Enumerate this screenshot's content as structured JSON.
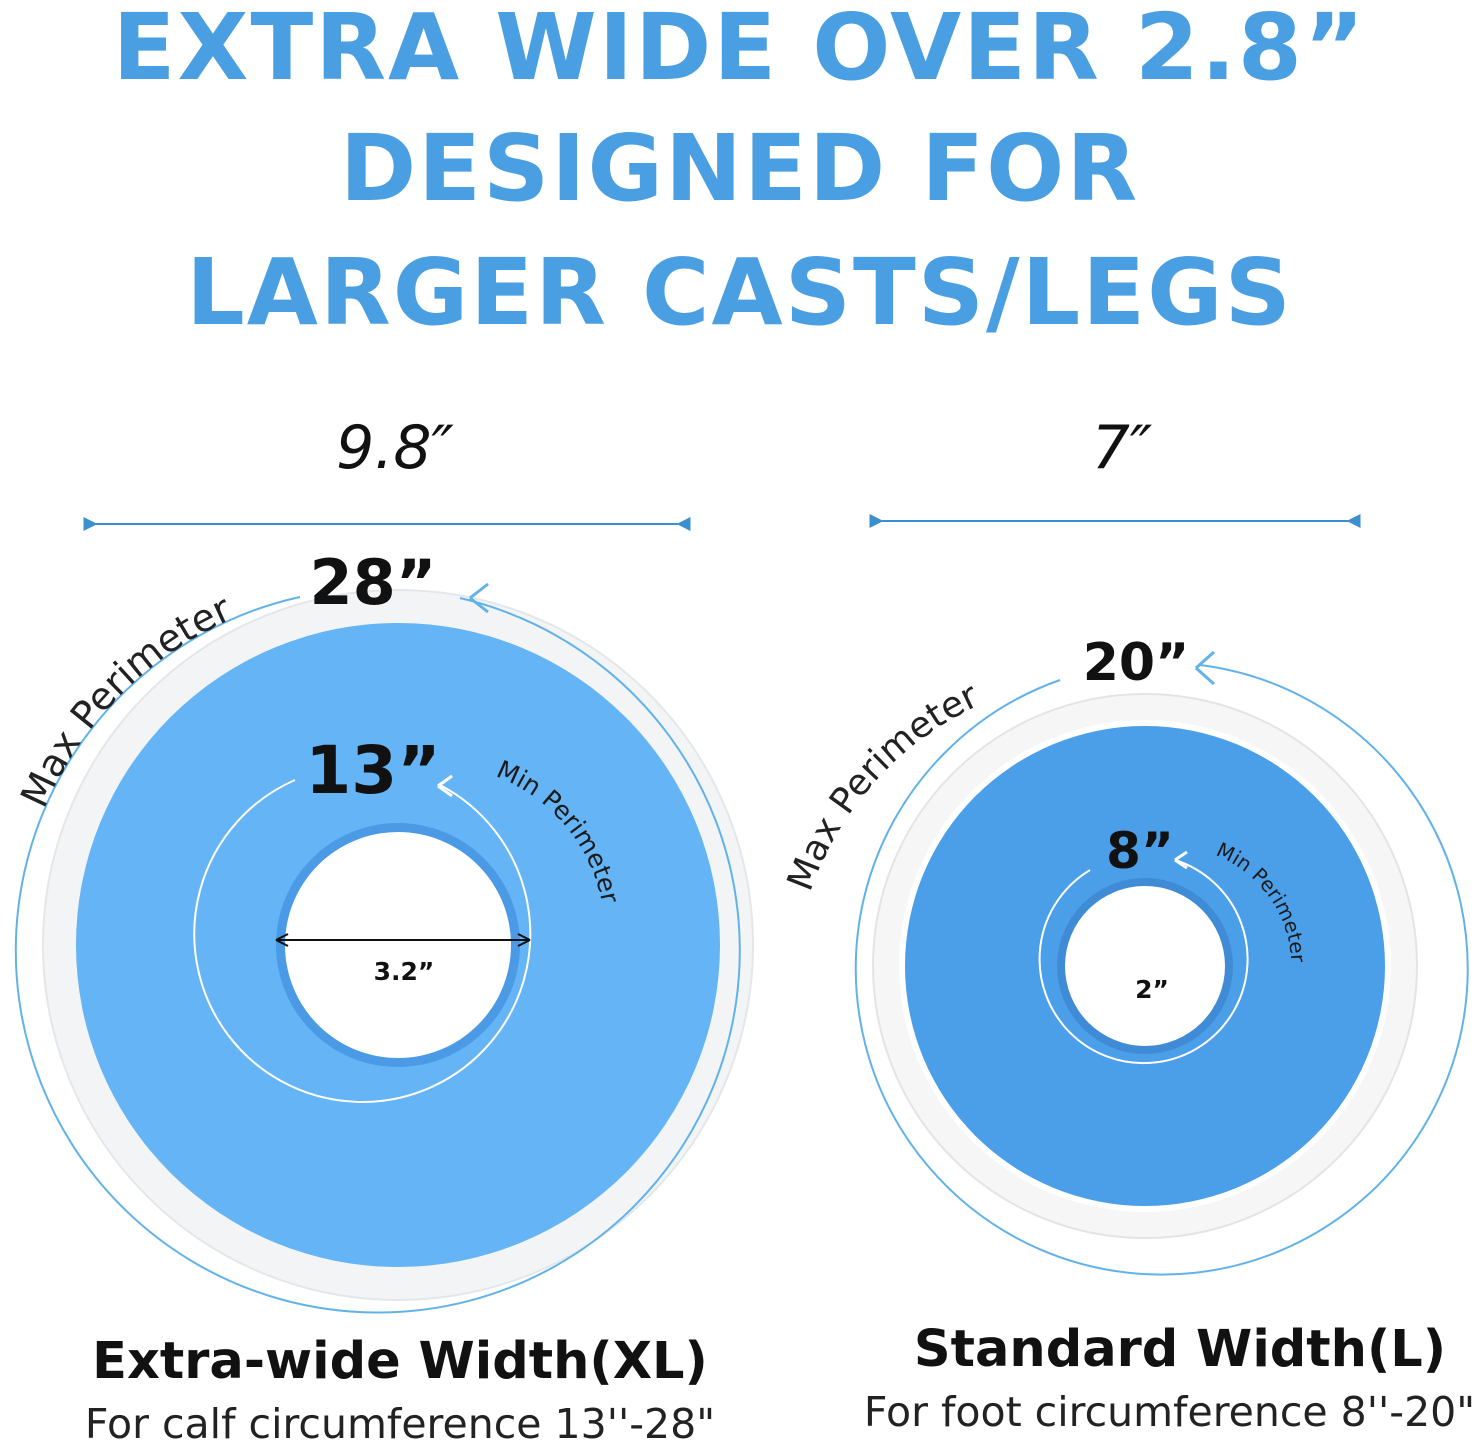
{
  "headline": {
    "line1": "EXTRA WIDE OVER 2.8”",
    "line2": "DESIGNED FOR",
    "line3": "LARGER CASTS/LEGS"
  },
  "colors": {
    "headline": "#4a9fe3",
    "arrow": "#3a8fd0",
    "xl_ring": "#64b4f6",
    "l_ring": "#4b9ee8",
    "rim": "#f2f4f6"
  },
  "xl": {
    "width": "9.8″",
    "max_perimeter_value": "28”",
    "max_perimeter_label": "Max Perimeter",
    "min_perimeter_value": "13”",
    "min_perimeter_label": "Min Perimeter",
    "inner_diameter": "3.2”",
    "title": "Extra-wide Width(XL)",
    "subtitle": "For calf circumference 13''-28\""
  },
  "l": {
    "width": "7″",
    "max_perimeter_value": "20”",
    "max_perimeter_label": "Max Perimeter",
    "min_perimeter_value": "8”",
    "min_perimeter_label": "Min Perimeter",
    "inner_diameter": "2”",
    "title": "Standard Width(L)",
    "subtitle": "For foot circumference 8''-20\""
  }
}
